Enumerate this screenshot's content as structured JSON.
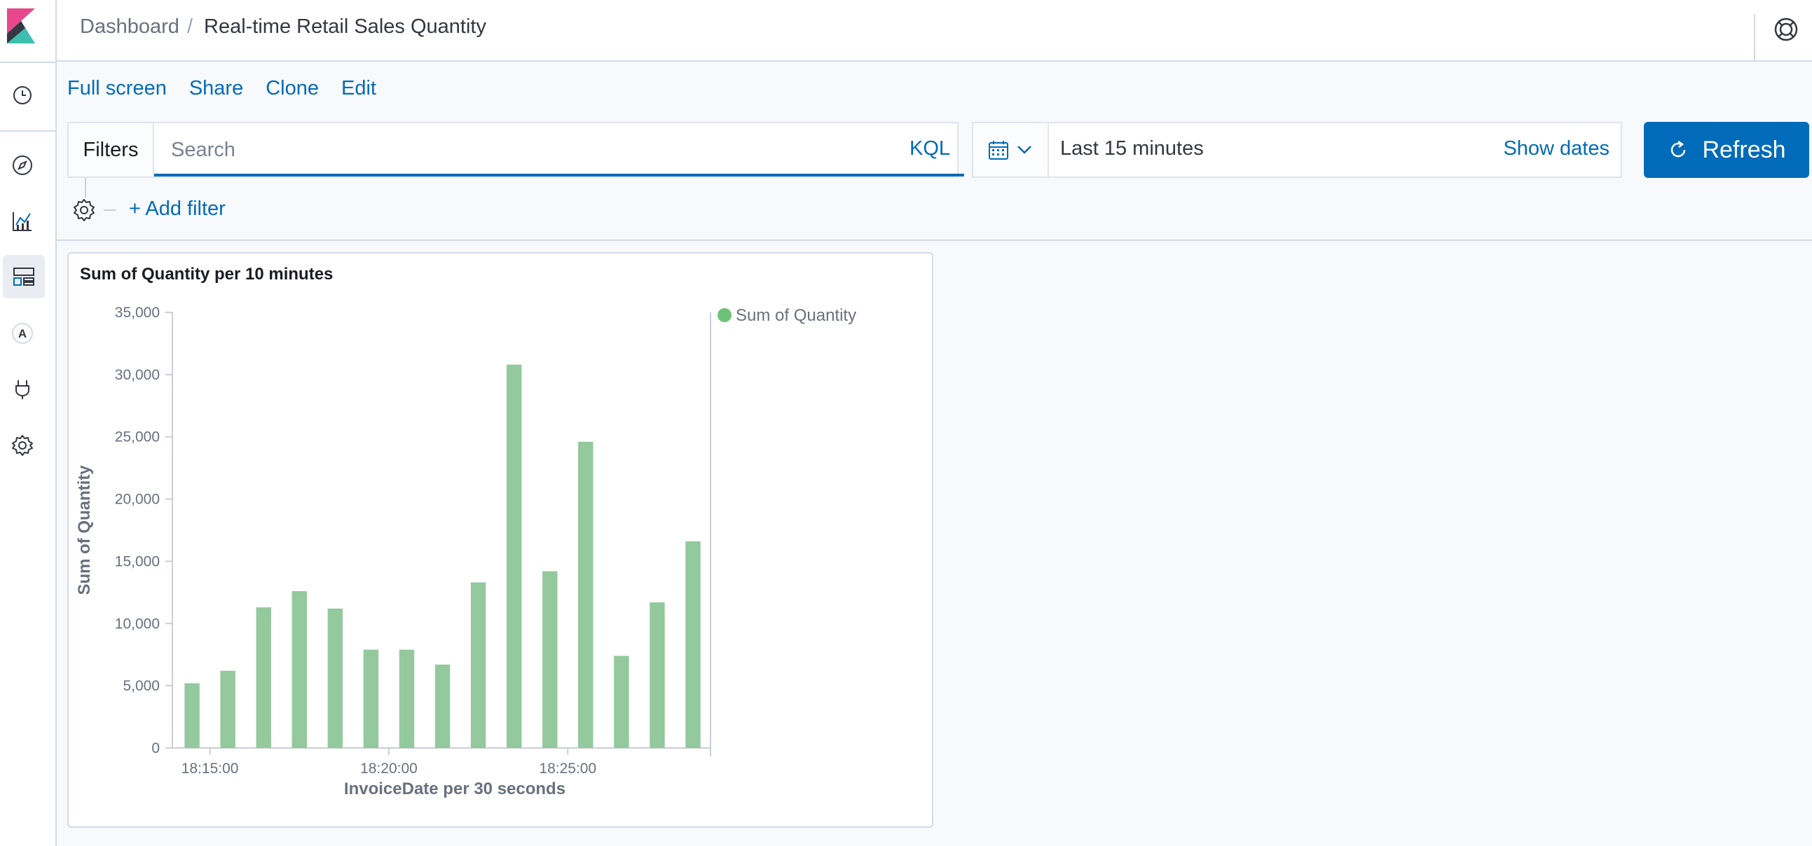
{
  "header": {
    "breadcrumb_root": "Dashboard",
    "breadcrumb_separator": "/",
    "breadcrumb_current": "Real-time Retail Sales Quantity"
  },
  "top_menu": {
    "full_screen": "Full screen",
    "share": "Share",
    "clone": "Clone",
    "edit": "Edit"
  },
  "query_bar": {
    "filters_label": "Filters",
    "search_placeholder": "Search",
    "language": "KQL"
  },
  "time_picker": {
    "range_text": "Last 15 minutes",
    "show_dates": "Show dates"
  },
  "refresh_label": "Refresh",
  "filter_bar": {
    "add_filter": "+ Add filter"
  },
  "left_nav": {
    "icons": [
      "clock-icon",
      "compass-icon",
      "visualize-icon",
      "dashboard-icon",
      "canvas-icon",
      "dev-tools-icon",
      "management-icon"
    ],
    "active": "dashboard-icon"
  },
  "colors": {
    "accent": "#006bb8",
    "bar": "#93c99d",
    "legend_dot": "#6dc27a"
  },
  "panel": {
    "title": "Sum of Quantity per 10 minutes"
  },
  "chart_data": {
    "type": "bar",
    "title": "Sum of Quantity per 10 minutes",
    "xlabel": "InvoiceDate per 30 seconds",
    "ylabel": "Sum of Quantity",
    "ylim": [
      0,
      35000
    ],
    "yticks": [
      0,
      5000,
      10000,
      15000,
      20000,
      25000,
      30000,
      35000
    ],
    "ytick_labels": [
      "0",
      "5,000",
      "10,000",
      "15,000",
      "20,000",
      "25,000",
      "30,000",
      "35,000"
    ],
    "xtick_labels": [
      "18:15:00",
      "18:20:00",
      "18:25:00"
    ],
    "xtick_positions": [
      1,
      6,
      11
    ],
    "legend_position": "top-right",
    "series": [
      {
        "name": "Sum of Quantity",
        "values": [
          5200,
          6200,
          11300,
          12600,
          11200,
          7900,
          7900,
          6700,
          13300,
          30800,
          14200,
          24600,
          7400,
          11700,
          16600
        ]
      }
    ]
  }
}
